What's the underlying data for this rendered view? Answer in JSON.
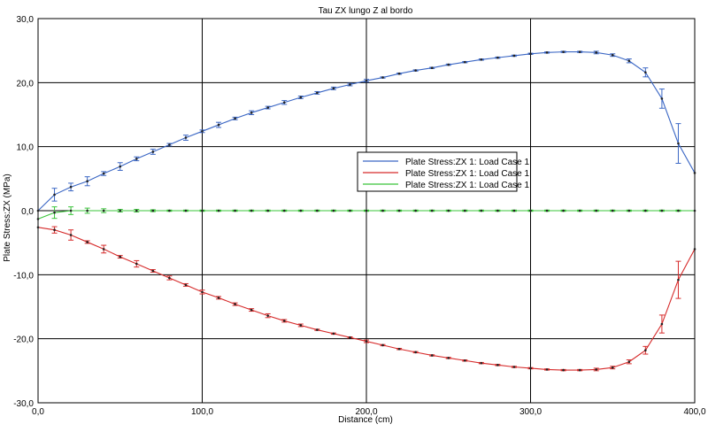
{
  "chart_data": {
    "type": "line",
    "title": "Tau ZX lungo Z al bordo",
    "xlabel": "Distance (cm)",
    "ylabel": "Plate Stress:ZX (MPa)",
    "xlim": [
      0,
      400
    ],
    "ylim": [
      -30,
      30
    ],
    "x_ticks": [
      "0,0",
      "100,0",
      "200,0",
      "300,0",
      "400,0"
    ],
    "y_ticks": [
      "30,0",
      "20,0",
      "10,0",
      "0,0",
      "-10,0",
      "-20,0",
      "-30,0"
    ],
    "grid": true,
    "legend_position": "center-right",
    "x": [
      0,
      10,
      20,
      30,
      40,
      50,
      60,
      70,
      80,
      90,
      100,
      110,
      120,
      130,
      140,
      150,
      160,
      170,
      180,
      190,
      200,
      210,
      220,
      230,
      240,
      250,
      260,
      270,
      280,
      290,
      300,
      310,
      320,
      330,
      340,
      350,
      360,
      370,
      380,
      390,
      400
    ],
    "series": [
      {
        "name": "Plate Stress:ZX  1: Load Case 1",
        "color": "#3a66c4",
        "values": [
          0,
          2.5,
          3.7,
          4.6,
          5.8,
          6.9,
          8.1,
          9.2,
          10.3,
          11.4,
          12.4,
          13.4,
          14.4,
          15.3,
          16.1,
          16.9,
          17.7,
          18.4,
          19.1,
          19.7,
          20.3,
          20.8,
          21.4,
          21.9,
          22.3,
          22.8,
          23.2,
          23.6,
          23.9,
          24.2,
          24.5,
          24.7,
          24.8,
          24.8,
          24.7,
          24.3,
          23.4,
          21.6,
          17.5,
          10.5,
          5.9
        ],
        "error": [
          0,
          1.0,
          0.6,
          0.7,
          0.3,
          0.6,
          0.3,
          0.4,
          0.2,
          0.4,
          0.2,
          0.4,
          0.2,
          0.3,
          0.2,
          0.3,
          0.2,
          0.2,
          0.2,
          0.2,
          0.2,
          0.1,
          0.1,
          0.1,
          0.1,
          0.1,
          0.1,
          0.1,
          0.1,
          0.1,
          0.1,
          0.1,
          0.1,
          0.1,
          0.2,
          0.2,
          0.3,
          0.7,
          1.5,
          3.1,
          0
        ]
      },
      {
        "name": "Plate Stress:ZX  1: Load Case 1",
        "color": "#d62a2a",
        "values": [
          -2.6,
          -3.0,
          -3.8,
          -4.9,
          -6.0,
          -7.2,
          -8.3,
          -9.4,
          -10.5,
          -11.6,
          -12.7,
          -13.6,
          -14.6,
          -15.5,
          -16.4,
          -17.2,
          -17.9,
          -18.6,
          -19.2,
          -19.8,
          -20.4,
          -21.0,
          -21.6,
          -22.1,
          -22.6,
          -23.0,
          -23.4,
          -23.8,
          -24.1,
          -24.4,
          -24.6,
          -24.8,
          -24.9,
          -24.9,
          -24.8,
          -24.5,
          -23.6,
          -21.8,
          -17.7,
          -10.8,
          -6.0
        ],
        "error": [
          0,
          0.5,
          0.8,
          0.2,
          0.6,
          0.2,
          0.5,
          0.2,
          0.3,
          0.2,
          0.3,
          0.2,
          0.2,
          0.2,
          0.3,
          0.2,
          0.2,
          0.1,
          0.1,
          0.1,
          0.2,
          0.1,
          0.1,
          0.1,
          0.1,
          0.1,
          0.1,
          0.1,
          0.1,
          0.1,
          0.1,
          0.1,
          0.1,
          0.1,
          0.2,
          0.2,
          0.3,
          0.6,
          1.4,
          2.9,
          0
        ]
      },
      {
        "name": "Plate Stress:ZX  1: Load Case 1",
        "color": "#39c439",
        "values": [
          -1.3,
          -0.3,
          0,
          0,
          0,
          0,
          0,
          0,
          0,
          0,
          0,
          0,
          0,
          0,
          0,
          0,
          0,
          0,
          0,
          0,
          0,
          0,
          0,
          0,
          0,
          0,
          0,
          0,
          0,
          0,
          0,
          0,
          0,
          0,
          0,
          0,
          0,
          0,
          0,
          0,
          0
        ],
        "error": [
          0,
          0.9,
          0.6,
          0.4,
          0.3,
          0.2,
          0.2,
          0.15,
          0.1,
          0.1,
          0.1,
          0.1,
          0.1,
          0.1,
          0.1,
          0.1,
          0.1,
          0.1,
          0.1,
          0.1,
          0.1,
          0.1,
          0.1,
          0.1,
          0.1,
          0.1,
          0.1,
          0.1,
          0.1,
          0.1,
          0.1,
          0.1,
          0.1,
          0.1,
          0.1,
          0.1,
          0.1,
          0.1,
          0.1,
          0.1,
          0
        ]
      }
    ],
    "zero_line_color": "#000000"
  }
}
